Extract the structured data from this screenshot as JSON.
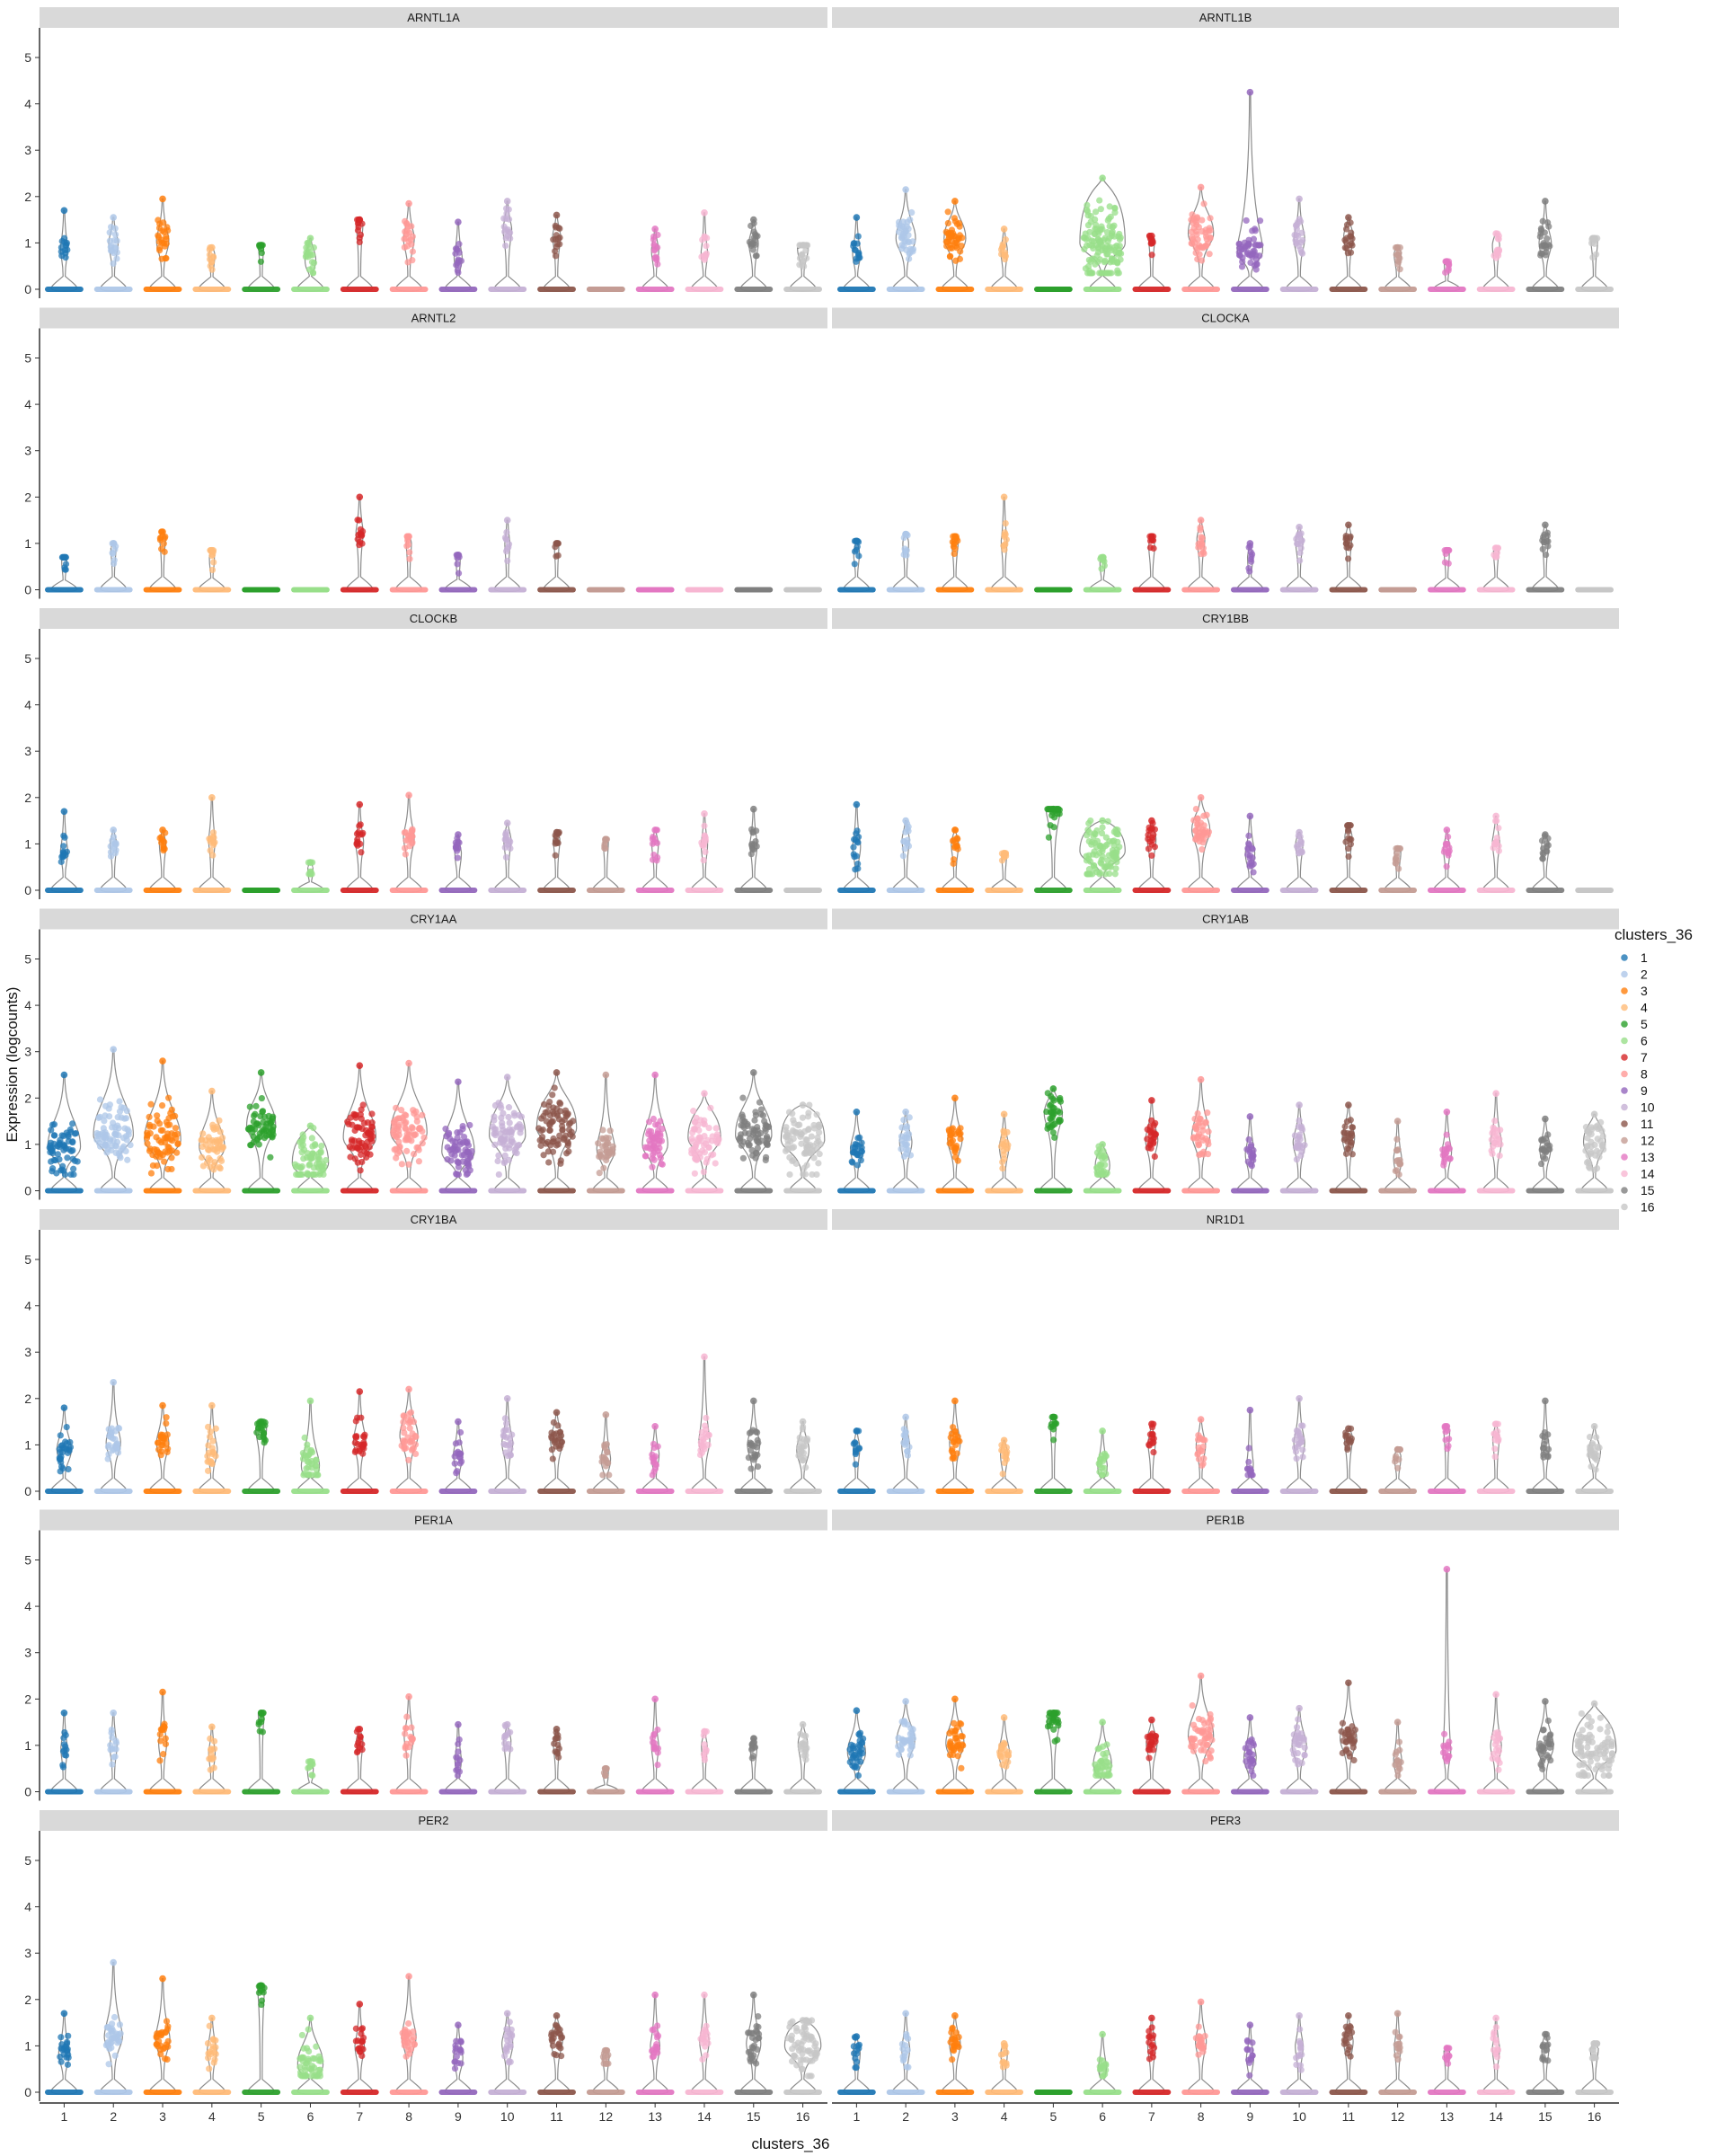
{
  "chart_data": {
    "type": "violin",
    "xlabel": "clusters_36",
    "ylabel": "Expression (logcounts)",
    "ylim": [
      0,
      5
    ],
    "yticks": [
      "0",
      "1",
      "2",
      "3",
      "4",
      "5"
    ],
    "legend": {
      "title": "clusters_36",
      "placement": "right",
      "labels": [
        "1",
        "2",
        "3",
        "4",
        "5",
        "6",
        "7",
        "8",
        "9",
        "10",
        "11",
        "12",
        "13",
        "14",
        "15",
        "16"
      ]
    },
    "categories": [
      "1",
      "2",
      "3",
      "4",
      "5",
      "6",
      "7",
      "8",
      "9",
      "10",
      "11",
      "12",
      "13",
      "14",
      "15",
      "16"
    ],
    "colors": [
      "#1f77b4",
      "#aec7e8",
      "#ff7f0e",
      "#ffbb78",
      "#2ca02c",
      "#98df8a",
      "#d62728",
      "#ff9896",
      "#9467bd",
      "#c5b0d5",
      "#8c564b",
      "#c49c94",
      "#e377c2",
      "#f7b6d2",
      "#7f7f7f",
      "#c7c7c7"
    ],
    "panels": [
      {
        "gene": "ARNTL1A",
        "max": [
          1.7,
          1.55,
          1.95,
          0.9,
          0.95,
          1.1,
          1.5,
          1.85,
          1.45,
          1.9,
          1.6,
          0,
          1.3,
          1.65,
          1.5,
          0.95
        ],
        "mode": [
          0.9,
          1.0,
          1.05,
          0.75,
          0.95,
          0.65,
          1.4,
          1.1,
          0.7,
          1.3,
          1.15,
          0,
          0.85,
          0.8,
          1.0,
          0.9
        ],
        "body": [
          0.05,
          0.08,
          0.12,
          0.03,
          0.02,
          0.1,
          0.04,
          0.1,
          0.06,
          0.07,
          0.06,
          0,
          0.05,
          0.04,
          0.08,
          0.1
        ]
      },
      {
        "gene": "ARNTL1B",
        "max": [
          1.55,
          2.15,
          1.9,
          1.3,
          0,
          2.4,
          1.15,
          2.2,
          4.25,
          1.95,
          1.55,
          0.9,
          0.6,
          1.2,
          1.9,
          1.1
        ],
        "mode": [
          0.8,
          1.1,
          1.1,
          0.85,
          0,
          1.0,
          1.1,
          1.2,
          0.85,
          1.1,
          1.15,
          0.8,
          0.55,
          0.95,
          1.0,
          1.05
        ],
        "body": [
          0.06,
          0.22,
          0.25,
          0.04,
          0,
          0.9,
          0.03,
          0.3,
          0.3,
          0.1,
          0.08,
          0.05,
          0.02,
          0.05,
          0.12,
          0.04
        ]
      },
      {
        "gene": "ARNTL2",
        "max": [
          0.7,
          1.0,
          1.25,
          0.85,
          0,
          0,
          2.0,
          1.15,
          0.75,
          1.5,
          1.0,
          0,
          0,
          0,
          0,
          0
        ],
        "mode": [
          0.65,
          0.9,
          1.15,
          0.7,
          0,
          0,
          1.25,
          1.0,
          0.7,
          1.0,
          0.95,
          0,
          0,
          0,
          0,
          0
        ],
        "body": [
          0.02,
          0.02,
          0.03,
          0.02,
          0,
          0,
          0.05,
          0.02,
          0.01,
          0.02,
          0.01,
          0,
          0,
          0,
          0,
          0
        ]
      },
      {
        "gene": "CLOCKA",
        "max": [
          1.05,
          1.2,
          1.15,
          2.0,
          0,
          0.7,
          1.15,
          1.5,
          1.0,
          1.35,
          1.4,
          0,
          0.85,
          0.9,
          1.4,
          0
        ],
        "mode": [
          0.8,
          1.0,
          1.05,
          1.05,
          0,
          0.6,
          0.95,
          1.1,
          0.7,
          1.05,
          1.1,
          0,
          0.8,
          0.85,
          1.1,
          0
        ],
        "body": [
          0.03,
          0.03,
          0.04,
          0.03,
          0,
          0.02,
          0.03,
          0.06,
          0.02,
          0.05,
          0.04,
          0,
          0.02,
          0.02,
          0.04,
          0
        ]
      },
      {
        "gene": "CLOCKB",
        "max": [
          1.7,
          1.3,
          1.3,
          2.0,
          0,
          0.6,
          1.85,
          2.05,
          1.2,
          1.45,
          1.25,
          1.1,
          1.3,
          1.65,
          1.75,
          0
        ],
        "mode": [
          0.85,
          1.0,
          1.0,
          1.1,
          0,
          0.5,
          1.05,
          1.15,
          0.8,
          1.1,
          1.1,
          1.05,
          1.0,
          1.0,
          1.0,
          0
        ],
        "body": [
          0.05,
          0.04,
          0.04,
          0.04,
          0,
          0.02,
          0.06,
          0.1,
          0.04,
          0.05,
          0.04,
          0.02,
          0.04,
          0.04,
          0.05,
          0
        ]
      },
      {
        "gene": "CRY1BB",
        "max": [
          1.85,
          1.5,
          1.3,
          0.8,
          1.75,
          1.5,
          1.5,
          2.0,
          1.6,
          1.25,
          1.4,
          0.9,
          1.3,
          1.6,
          1.2,
          0
        ],
        "mode": [
          0.95,
          1.1,
          1.0,
          0.8,
          1.75,
          0.85,
          1.1,
          1.3,
          0.8,
          1.0,
          1.15,
          0.85,
          0.9,
          1.05,
          0.95,
          0
        ],
        "body": [
          0.06,
          0.05,
          0.05,
          0.02,
          0.15,
          0.6,
          0.07,
          0.2,
          0.08,
          0.05,
          0.05,
          0.04,
          0.04,
          0.05,
          0.05,
          0
        ]
      },
      {
        "gene": "CRY1AA",
        "max": [
          2.5,
          3.05,
          2.8,
          2.15,
          2.55,
          1.4,
          2.7,
          2.75,
          2.35,
          2.45,
          2.55,
          2.5,
          2.5,
          2.1,
          2.55,
          1.85
        ],
        "mode": [
          0.95,
          1.2,
          1.1,
          0.95,
          1.4,
          0.6,
          1.15,
          1.25,
          0.85,
          1.2,
          1.35,
          0.9,
          1.0,
          1.15,
          1.2,
          1.1
        ],
        "body": [
          0.4,
          0.5,
          0.45,
          0.3,
          0.35,
          0.45,
          0.4,
          0.45,
          0.4,
          0.45,
          0.5,
          0.2,
          0.3,
          0.4,
          0.45,
          0.55
        ]
      },
      {
        "gene": "CRY1AB",
        "max": [
          1.7,
          1.7,
          2.0,
          1.65,
          2.2,
          1.0,
          1.95,
          2.4,
          1.6,
          1.85,
          1.85,
          1.5,
          1.7,
          2.1,
          1.55,
          1.65
        ],
        "mode": [
          0.9,
          1.05,
          1.1,
          0.95,
          1.65,
          0.55,
          1.1,
          1.2,
          0.8,
          1.05,
          1.15,
          0.7,
          0.85,
          1.05,
          0.9,
          1.05
        ],
        "body": [
          0.12,
          0.12,
          0.15,
          0.08,
          0.2,
          0.15,
          0.12,
          0.2,
          0.08,
          0.12,
          0.12,
          0.06,
          0.08,
          0.1,
          0.1,
          0.25
        ]
      },
      {
        "gene": "CRY1BA",
        "max": [
          1.8,
          2.35,
          1.85,
          1.85,
          1.5,
          1.95,
          2.15,
          2.2,
          1.5,
          2.0,
          1.7,
          1.65,
          1.4,
          2.9,
          1.95,
          1.5
        ],
        "mode": [
          0.9,
          1.05,
          1.05,
          0.9,
          1.35,
          0.55,
          1.1,
          1.2,
          0.8,
          1.05,
          1.1,
          0.7,
          0.8,
          1.1,
          1.0,
          0.9
        ],
        "body": [
          0.15,
          0.15,
          0.12,
          0.1,
          0.1,
          0.2,
          0.12,
          0.2,
          0.08,
          0.1,
          0.12,
          0.08,
          0.06,
          0.1,
          0.12,
          0.12
        ]
      },
      {
        "gene": "NR1D1",
        "max": [
          1.3,
          1.6,
          1.95,
          1.1,
          1.6,
          1.3,
          1.45,
          1.55,
          1.75,
          2.0,
          1.35,
          0.9,
          1.4,
          1.45,
          1.95,
          1.4
        ],
        "mode": [
          0.95,
          1.0,
          1.05,
          0.8,
          1.5,
          0.55,
          1.05,
          1.0,
          0.6,
          1.05,
          1.15,
          0.75,
          1.3,
          1.15,
          0.95,
          0.85
        ],
        "body": [
          0.04,
          0.06,
          0.1,
          0.05,
          0.04,
          0.08,
          0.05,
          0.08,
          0.04,
          0.1,
          0.06,
          0.04,
          0.03,
          0.04,
          0.06,
          0.12
        ]
      },
      {
        "gene": "PER1A",
        "max": [
          1.7,
          1.7,
          2.15,
          1.4,
          1.7,
          0.65,
          1.35,
          2.05,
          1.45,
          1.45,
          1.35,
          0.5,
          2.0,
          1.3,
          1.15,
          1.45
        ],
        "mode": [
          0.95,
          1.0,
          1.05,
          0.85,
          1.7,
          0.5,
          1.1,
          1.2,
          0.7,
          1.1,
          1.05,
          0.45,
          1.0,
          1.0,
          0.95,
          1.05
        ],
        "body": [
          0.04,
          0.05,
          0.06,
          0.04,
          0.03,
          0.03,
          0.04,
          0.08,
          0.04,
          0.05,
          0.04,
          0.02,
          0.05,
          0.03,
          0.04,
          0.08
        ]
      },
      {
        "gene": "PER1B",
        "max": [
          1.75,
          1.95,
          2.0,
          1.6,
          1.7,
          1.5,
          1.55,
          2.5,
          1.6,
          1.8,
          2.35,
          1.5,
          4.8,
          2.1,
          1.95,
          1.9
        ],
        "mode": [
          0.85,
          1.1,
          1.05,
          0.85,
          1.5,
          0.6,
          1.05,
          1.2,
          0.75,
          1.0,
          1.15,
          0.7,
          0.9,
          1.0,
          1.0,
          0.9
        ],
        "body": [
          0.2,
          0.2,
          0.2,
          0.1,
          0.12,
          0.2,
          0.1,
          0.3,
          0.12,
          0.15,
          0.18,
          0.06,
          0.06,
          0.1,
          0.18,
          0.55
        ]
      },
      {
        "gene": "PER2",
        "max": [
          1.7,
          2.8,
          2.45,
          1.6,
          2.3,
          1.6,
          1.9,
          2.5,
          1.45,
          1.7,
          1.65,
          0.9,
          2.1,
          2.1,
          2.1,
          1.55
        ],
        "mode": [
          0.85,
          1.2,
          1.15,
          0.9,
          2.3,
          0.6,
          1.0,
          1.2,
          0.75,
          1.05,
          1.15,
          0.8,
          1.0,
          1.1,
          1.05,
          1.0
        ],
        "body": [
          0.1,
          0.2,
          0.15,
          0.08,
          0.05,
          0.3,
          0.08,
          0.15,
          0.08,
          0.1,
          0.12,
          0.04,
          0.08,
          0.08,
          0.15,
          0.45
        ]
      },
      {
        "gene": "PER3",
        "max": [
          1.2,
          1.7,
          1.65,
          1.05,
          0,
          1.25,
          1.6,
          1.95,
          1.45,
          1.65,
          1.65,
          1.7,
          0.95,
          1.6,
          1.25,
          1.05
        ],
        "mode": [
          0.85,
          0.95,
          1.05,
          0.85,
          0,
          0.55,
          1.0,
          1.1,
          0.75,
          1.0,
          1.1,
          1.0,
          0.9,
          0.95,
          0.95,
          0.95
        ],
        "body": [
          0.05,
          0.06,
          0.1,
          0.04,
          0,
          0.06,
          0.06,
          0.1,
          0.05,
          0.06,
          0.08,
          0.04,
          0.03,
          0.05,
          0.05,
          0.06
        ]
      }
    ]
  }
}
